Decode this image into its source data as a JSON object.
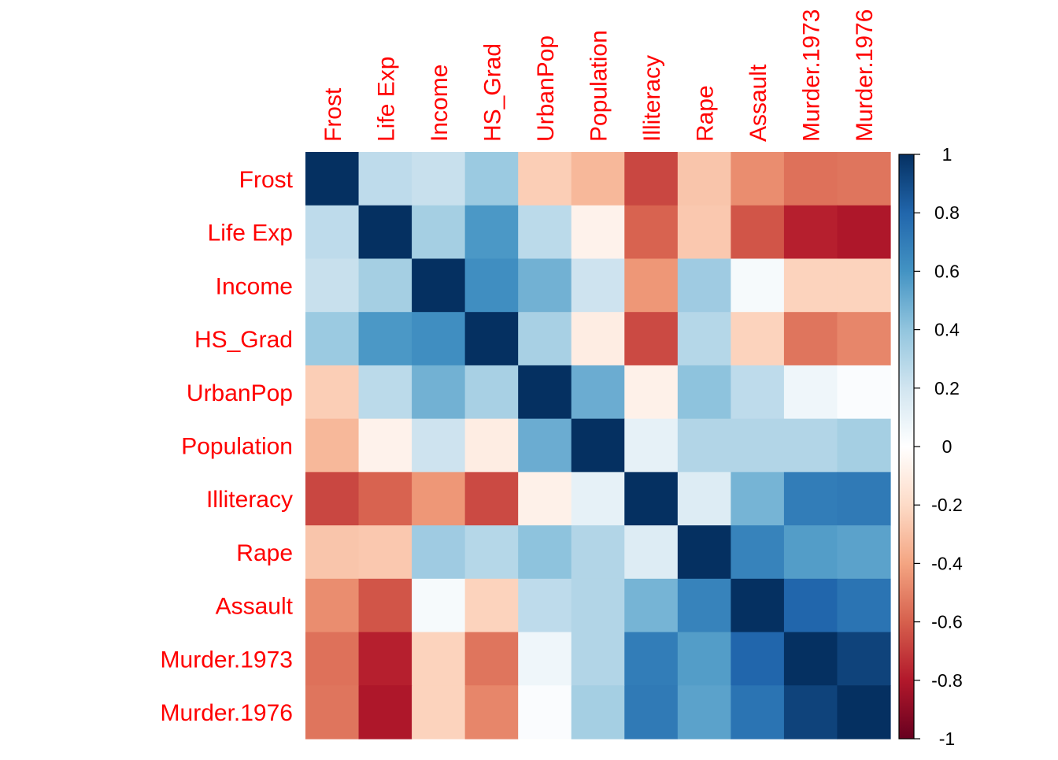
{
  "chart_data": {
    "type": "heatmap",
    "title": "",
    "row_labels": [
      "Frost",
      "Life Exp",
      "Income",
      "HS_Grad",
      "UrbanPop",
      "Population",
      "Illiteracy",
      "Rape",
      "Assault",
      "Murder.1973",
      "Murder.1976"
    ],
    "col_labels": [
      "Frost",
      "Life Exp",
      "Income",
      "HS_Grad",
      "UrbanPop",
      "Population",
      "Illiteracy",
      "Rape",
      "Assault",
      "Murder.1973",
      "Murder.1976"
    ],
    "values": [
      [
        1.0,
        0.26,
        0.23,
        0.37,
        -0.25,
        -0.33,
        -0.67,
        -0.28,
        -0.47,
        -0.55,
        -0.54
      ],
      [
        0.26,
        1.0,
        0.34,
        0.58,
        0.27,
        -0.07,
        -0.59,
        -0.27,
        -0.63,
        -0.78,
        -0.81
      ],
      [
        0.23,
        0.34,
        1.0,
        0.62,
        0.48,
        0.21,
        -0.44,
        0.36,
        0.04,
        -0.23,
        -0.23
      ],
      [
        0.37,
        0.58,
        0.62,
        1.0,
        0.33,
        -0.1,
        -0.66,
        0.29,
        -0.23,
        -0.54,
        -0.49
      ],
      [
        -0.25,
        0.27,
        0.48,
        0.33,
        1.0,
        0.5,
        -0.08,
        0.41,
        0.26,
        0.07,
        0.02
      ],
      [
        -0.33,
        -0.07,
        0.21,
        -0.1,
        0.5,
        1.0,
        0.11,
        0.3,
        0.3,
        0.3,
        0.34
      ],
      [
        -0.67,
        -0.59,
        -0.44,
        -0.66,
        -0.08,
        0.11,
        1.0,
        0.15,
        0.47,
        0.7,
        0.71
      ],
      [
        -0.28,
        -0.27,
        0.36,
        0.29,
        0.41,
        0.3,
        0.15,
        1.0,
        0.67,
        0.56,
        0.54
      ],
      [
        -0.47,
        -0.63,
        0.04,
        -0.23,
        0.26,
        0.3,
        0.47,
        0.67,
        1.0,
        0.8,
        0.74
      ],
      [
        -0.55,
        -0.78,
        -0.23,
        -0.54,
        0.07,
        0.3,
        0.7,
        0.56,
        0.8,
        1.0,
        0.93
      ],
      [
        -0.54,
        -0.81,
        -0.23,
        -0.49,
        0.02,
        0.34,
        0.71,
        0.54,
        0.74,
        0.93,
        1.0
      ]
    ],
    "colorbar": {
      "ticks": [
        "1",
        "0.8",
        "0.6",
        "0.4",
        "0.2",
        "0",
        "-0.2",
        "-0.4",
        "-0.6",
        "-0.8",
        "-1"
      ],
      "range": [
        -1,
        1
      ]
    },
    "colors": {
      "scale": [
        "#67001F",
        "#B2182B",
        "#D6604D",
        "#F4A582",
        "#FDDBC7",
        "#FFFFFF",
        "#D1E5F0",
        "#92C5DE",
        "#4393C3",
        "#2166AC",
        "#053061"
      ],
      "label": "#FF0000",
      "tick": "#000000"
    }
  }
}
